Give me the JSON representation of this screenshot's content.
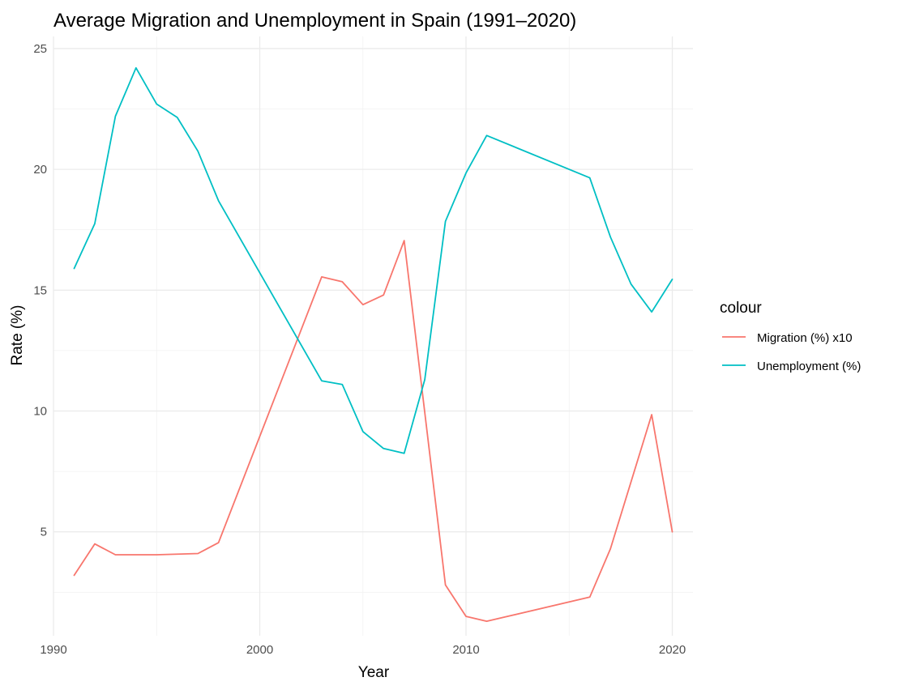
{
  "chart_data": {
    "type": "line",
    "title": "Average Migration and Unemployment in Spain (1991–2020)",
    "xlabel": "Year",
    "ylabel": "Rate (%)",
    "xlim": [
      1990,
      2021
    ],
    "ylim": [
      0.7,
      25.5
    ],
    "x_ticks": [
      1990,
      2000,
      2010,
      2020
    ],
    "y_ticks": [
      5,
      10,
      15,
      20,
      25
    ],
    "grid": true,
    "legend": {
      "title": "colour",
      "position": "right"
    },
    "series": [
      {
        "name": "Migration (%) x10",
        "color": "#F8766D",
        "points": [
          [
            1991,
            3.2
          ],
          [
            1992,
            4.5
          ],
          [
            1993,
            4.05
          ],
          [
            1995,
            4.05
          ],
          [
            1997,
            4.1
          ],
          [
            1998,
            4.55
          ],
          [
            2003,
            15.55
          ],
          [
            2004,
            15.35
          ],
          [
            2005,
            14.4
          ],
          [
            2006,
            14.8
          ],
          [
            2007,
            17.05
          ],
          [
            2009,
            2.8
          ],
          [
            2010,
            1.5
          ],
          [
            2011,
            1.3
          ],
          [
            2016,
            2.3
          ],
          [
            2017,
            4.3
          ],
          [
            2019,
            9.85
          ],
          [
            2020,
            5.0
          ]
        ]
      },
      {
        "name": "Unemployment (%)",
        "color": "#00BFC4",
        "points": [
          [
            1991,
            15.9
          ],
          [
            1992,
            17.75
          ],
          [
            1993,
            22.2
          ],
          [
            1994,
            24.2
          ],
          [
            1995,
            22.7
          ],
          [
            1996,
            22.15
          ],
          [
            1997,
            20.75
          ],
          [
            1998,
            18.7
          ],
          [
            2003,
            11.25
          ],
          [
            2004,
            11.1
          ],
          [
            2005,
            9.15
          ],
          [
            2006,
            8.45
          ],
          [
            2007,
            8.25
          ],
          [
            2008,
            11.3
          ],
          [
            2009,
            17.85
          ],
          [
            2010,
            19.85
          ],
          [
            2011,
            21.4
          ],
          [
            2016,
            19.65
          ],
          [
            2017,
            17.2
          ],
          [
            2018,
            15.25
          ],
          [
            2019,
            14.1
          ],
          [
            2020,
            15.45
          ]
        ]
      }
    ]
  }
}
